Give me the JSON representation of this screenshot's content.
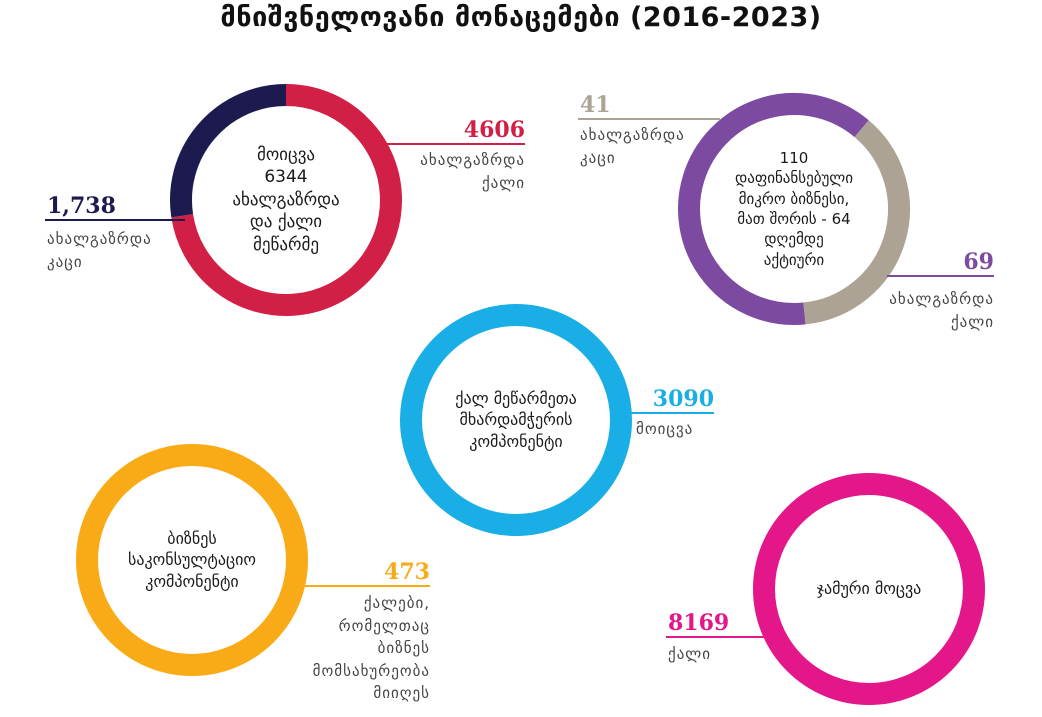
{
  "title": "მნიშვნელოვანი მონაცემები (2016-2023)",
  "colors": {
    "navy": "#1c1a4f",
    "crimson": "#d21f45",
    "taupe": "#aca395",
    "violet": "#7c4aa0",
    "cyan": "#19aee6",
    "amber": "#f9ab17",
    "magenta": "#e3168a"
  },
  "chart_data": [
    {
      "type": "pie",
      "center_text": "მოიცვა\n6344\nახალგაზრდა\nდა ქალი\nმეწარმე",
      "series": [
        {
          "value": "4606",
          "caption": "ახალგაზრდა\nქალი",
          "color": "#d21f45"
        },
        {
          "value": "1,738",
          "caption": "ახალგაზრდა\nკაცი",
          "color": "#1c1a4f"
        }
      ]
    },
    {
      "type": "pie",
      "center_text": "110\nდაფინანსებული\nმიკრო ბიზნესი,\nმათ შორის - 64\nდღემდე\nაქტიური",
      "series": [
        {
          "value": "69",
          "caption": "ახალგაზრდა\nქალი",
          "color": "#7c4aa0"
        },
        {
          "value": "41",
          "caption": "ახალგაზრდა\nკაცი",
          "color": "#aca395"
        }
      ]
    },
    {
      "type": "pie",
      "center_text": "ქალ მეწარმეთა\nმხარდამჭერის\nკომპონენტი",
      "series": [
        {
          "value": "3090",
          "caption": "მოიცვა",
          "color": "#19aee6"
        }
      ]
    },
    {
      "type": "pie",
      "center_text": "ბიზნეს\nსაკონსულტაციო\nკომპონენტი",
      "series": [
        {
          "value": "473",
          "caption": "ქალები,\nრომელთაც\nბიზნეს\nმომსახურეობა\nმიიღეს",
          "color": "#f9ab17"
        }
      ]
    },
    {
      "type": "pie",
      "center_text": "ჯამური მოცვა",
      "series": [
        {
          "value": "8169",
          "caption": "ქალი",
          "color": "#e3168a"
        }
      ]
    }
  ]
}
